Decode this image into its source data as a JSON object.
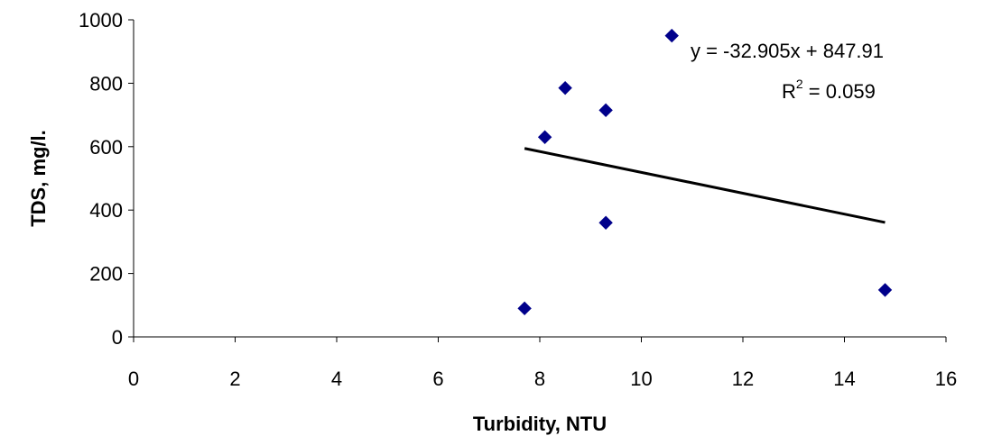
{
  "chart_data": {
    "type": "scatter",
    "xlabel": "Turbidity, NTU",
    "ylabel": "TDS, mg/l.",
    "xlim": [
      0,
      16
    ],
    "ylim": [
      0,
      1000
    ],
    "x_ticks": [
      0,
      2,
      4,
      6,
      8,
      10,
      12,
      14,
      16
    ],
    "y_ticks": [
      0,
      200,
      400,
      600,
      800,
      1000
    ],
    "grid": false,
    "series": [
      {
        "color": "#00008B",
        "marker": "diamond",
        "points": [
          {
            "x": 7.7,
            "y": 90
          },
          {
            "x": 8.1,
            "y": 630
          },
          {
            "x": 8.5,
            "y": 785
          },
          {
            "x": 9.3,
            "y": 715
          },
          {
            "x": 9.3,
            "y": 360
          },
          {
            "x": 10.6,
            "y": 950
          },
          {
            "x": 14.8,
            "y": 148
          }
        ]
      }
    ],
    "trendline": {
      "type": "linear",
      "slope": -32.905,
      "intercept": 847.91,
      "x_range": [
        7.7,
        14.8
      ],
      "color": "#000000"
    },
    "annotations": {
      "equation": "y = -32.905x + 847.91",
      "r_squared_prefix": "R",
      "r_squared_sup": "2",
      "r_squared_suffix": " = 0.059"
    }
  }
}
